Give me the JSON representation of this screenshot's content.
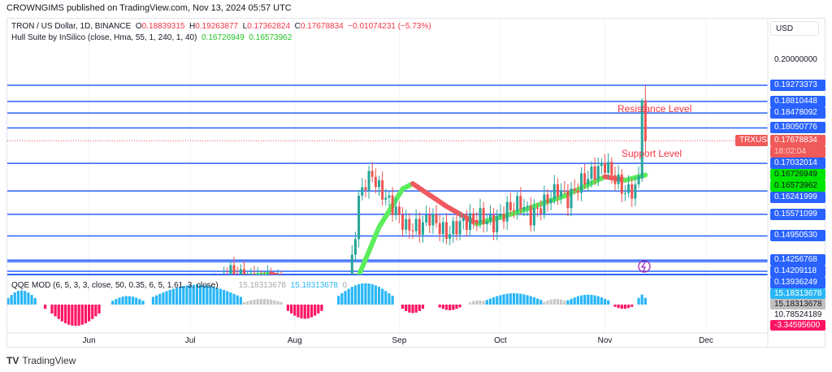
{
  "header": {
    "publisher": "CROWNGIMS published on TradingView.com, Nov 13, 2024 05:57 UTC",
    "symbol": "TRON / US Dollar, 1D, BINANCE",
    "o_label": "O",
    "o": "0.18839315",
    "h_label": "H",
    "h": "0.19263877",
    "l_label": "L",
    "l": "0.17362824",
    "c_label": "C",
    "c": "0.17678834",
    "change": "−0.01074231 (−5.73%)",
    "hull_label": "Hull Suite by InSilico (close, Hma, 55, 1, 240, 1, 40)",
    "hull_v1": "0.16726949",
    "hull_v2": "0.16573962",
    "qqe_label": "QQE MOD (6, 5, 3, 3, close, 50, 0.35, 6, 5, 1.61, 3, close)",
    "qqe_v1": "15.18313678",
    "qqe_v2": "15.18313678",
    "qqe_v3": "0"
  },
  "currency": "USD",
  "footer": {
    "brand": "TradingView"
  },
  "annotations": {
    "resistance": "Resistance Level",
    "support": "Support Level"
  },
  "colors": {
    "level": "#2962ff",
    "up": "#26a69a",
    "down": "#ef5350",
    "hull_up": "#5ced5c",
    "hull_down": "#f0595f",
    "qqe_up": "#29b6f6",
    "qqe_down": "#ff1464",
    "qqe_neutral": "#c8c8c8"
  },
  "chart_data": {
    "type": "candlestick",
    "title": "TRON / US Dollar, 1D, BINANCE",
    "x_start": "2024-05-08",
    "x_end": "2024-11-13",
    "x_ticks": [
      {
        "label": "Jun",
        "day": 24
      },
      {
        "label": "Jul",
        "day": 54
      },
      {
        "label": "Aug",
        "day": 85
      },
      {
        "label": "Sep",
        "day": 116
      },
      {
        "label": "Oct",
        "day": 146
      },
      {
        "label": "Nov",
        "day": 177
      },
      {
        "label": "Dec",
        "day": 207
      }
    ],
    "ylim": [
      0.1394,
      0.2065
    ],
    "y_tick": "0.20000000",
    "y_tick_value": 0.2,
    "last_price": {
      "label": "TRXUSD",
      "value": "0.17678834",
      "countdown": "18:02:04",
      "v": 0.17678834
    },
    "levels": [
      [
        "0.19273373",
        0.19273373
      ],
      [
        "0.18810448",
        0.18810448
      ],
      [
        "0.18478092",
        0.18478092
      ],
      [
        "0.18050776",
        0.18050776
      ],
      [
        "0.17032014",
        0.17032014
      ],
      [
        "0.16241999",
        0.16241999
      ],
      [
        "0.15571099",
        0.15571099
      ],
      [
        "0.14950530",
        0.1495053
      ],
      [
        "0.14256768",
        0.14256768
      ],
      [
        "0.14209118",
        0.14209118
      ],
      [
        "0.13936249",
        0.13936249
      ]
    ],
    "hull_labels": [
      [
        "0.16726949",
        0.16726949
      ],
      [
        "0.16573962",
        0.16573962
      ]
    ],
    "close_keypoints": [
      [
        60,
        0.133
      ],
      [
        66,
        0.139
      ],
      [
        70,
        0.137
      ],
      [
        78,
        0.136
      ],
      [
        83,
        0.133
      ],
      [
        100,
        0.132
      ],
      [
        102,
        0.142
      ],
      [
        104,
        0.16
      ],
      [
        106,
        0.165
      ],
      [
        108,
        0.167
      ],
      [
        110,
        0.163
      ],
      [
        114,
        0.158
      ],
      [
        118,
        0.152
      ],
      [
        122,
        0.152
      ],
      [
        125,
        0.155
      ],
      [
        130,
        0.15
      ],
      [
        134,
        0.153
      ],
      [
        140,
        0.155
      ],
      [
        144,
        0.153
      ],
      [
        148,
        0.157
      ],
      [
        152,
        0.159
      ],
      [
        155,
        0.155
      ],
      [
        160,
        0.16
      ],
      [
        163,
        0.163
      ],
      [
        166,
        0.16
      ],
      [
        170,
        0.165
      ],
      [
        174,
        0.168
      ],
      [
        177,
        0.17
      ],
      [
        180,
        0.166
      ],
      [
        183,
        0.162
      ],
      [
        186,
        0.163
      ],
      [
        187,
        0.166
      ]
    ],
    "last_candles": [
      {
        "day": 188,
        "o": 0.166,
        "h": 0.189,
        "l": 0.165,
        "c": 0.1884
      },
      {
        "day": 189,
        "o": 0.18839315,
        "h": 0.19263877,
        "l": 0.17362824,
        "c": 0.17678834
      }
    ],
    "hull": [
      {
        "trend": "up",
        "pts": [
          [
            65,
            0.1336
          ],
          [
            72,
            0.138
          ],
          [
            78,
            0.1385
          ]
        ]
      },
      {
        "trend": "down",
        "pts": [
          [
            78,
            0.1385
          ],
          [
            85,
            0.137
          ],
          [
            92,
            0.133
          ]
        ]
      },
      {
        "trend": "up",
        "pts": [
          [
            102,
            0.1336
          ],
          [
            110,
            0.152
          ],
          [
            117,
            0.163
          ],
          [
            120,
            0.1645
          ]
        ]
      },
      {
        "trend": "down",
        "pts": [
          [
            120,
            0.1645
          ],
          [
            130,
            0.158
          ],
          [
            139,
            0.153
          ]
        ]
      },
      {
        "trend": "up",
        "pts": [
          [
            139,
            0.153
          ],
          [
            150,
            0.156
          ],
          [
            165,
            0.161
          ],
          [
            177,
            0.1665
          ]
        ]
      },
      {
        "trend": "down",
        "pts": [
          [
            177,
            0.1665
          ],
          [
            183,
            0.1655
          ]
        ]
      },
      {
        "trend": "up",
        "pts": [
          [
            183,
            0.1655
          ],
          [
            189,
            0.167
          ]
        ]
      }
    ],
    "qqe": {
      "ylim": [
        -20,
        20
      ],
      "segments": [
        [
          0,
          8,
          10,
          "up"
        ],
        [
          11,
          11,
          -3,
          "down"
        ],
        [
          13,
          27,
          -15,
          "down"
        ],
        [
          31,
          40,
          6,
          "up"
        ],
        [
          43,
          69,
          14,
          "up"
        ],
        [
          70,
          81,
          4,
          "neutral"
        ],
        [
          83,
          93,
          -10,
          "down"
        ],
        [
          98,
          114,
          15,
          "up"
        ],
        [
          117,
          123,
          -6,
          "down"
        ],
        [
          128,
          134,
          -4,
          "down"
        ],
        [
          137,
          142,
          3,
          "neutral"
        ],
        [
          142,
          158,
          8,
          "up"
        ],
        [
          159,
          166,
          4,
          "neutral"
        ],
        [
          166,
          178,
          7,
          "up"
        ],
        [
          180,
          185,
          -3,
          "down"
        ],
        [
          187,
          189,
          7,
          "up"
        ]
      ],
      "labels": [
        [
          "15.18313678",
          "#29b6f6",
          "#fff"
        ],
        [
          "15.18313678",
          "#c0c0c0",
          "#131722"
        ],
        [
          "10.78524189",
          "#fff",
          "#131722"
        ],
        [
          "-3.34595600",
          "#ff1464",
          "#fff"
        ]
      ]
    }
  }
}
